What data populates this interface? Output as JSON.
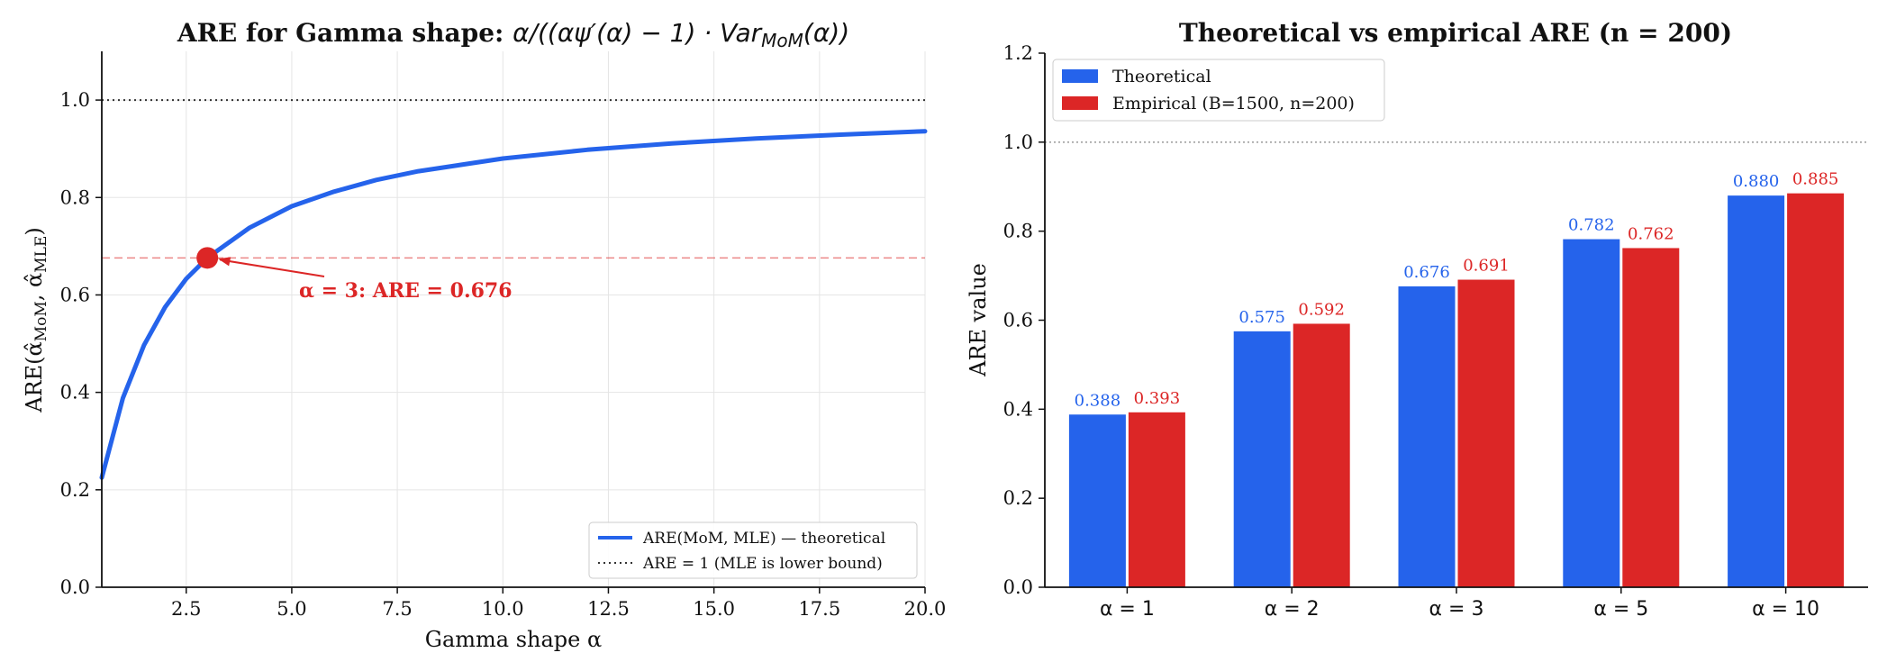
{
  "colors": {
    "blue": "#2563eb",
    "red": "#dc2626",
    "grid": "#e5e5e5",
    "ref": "#333333"
  },
  "chart_data": [
    {
      "type": "line",
      "title_prefix": "ARE for Gamma shape: ",
      "title_math": "α/((αψ′(α) − 1) · Var",
      "title_math_sub": "MoM",
      "title_math_tail": "(α))",
      "xlabel": "Gamma shape α",
      "ylabel": "ARE(α̂",
      "ylabel_sub1": "MoM",
      "ylabel_mid": ", α̂",
      "ylabel_sub2": "MLE",
      "ylabel_tail": ")",
      "xlim": [
        0.5,
        20
      ],
      "ylim": [
        0,
        1.1
      ],
      "xticks": [
        "2.5",
        "5.0",
        "7.5",
        "10.0",
        "12.5",
        "15.0",
        "17.5",
        "20.0"
      ],
      "yticks": [
        "0.0",
        "0.2",
        "0.4",
        "0.6",
        "0.8",
        "1.0"
      ],
      "grid": true,
      "series": [
        {
          "name": "ARE(MoM, MLE) — theoretical",
          "x": [
            0.5,
            1,
            1.5,
            2,
            2.5,
            3,
            4,
            5,
            6,
            7,
            8,
            10,
            12,
            14,
            16,
            18,
            20
          ],
          "y": [
            0.225,
            0.388,
            0.497,
            0.575,
            0.633,
            0.676,
            0.738,
            0.782,
            0.812,
            0.836,
            0.854,
            0.88,
            0.898,
            0.911,
            0.921,
            0.929,
            0.936
          ]
        }
      ],
      "reference_lines": [
        {
          "name": "ARE = 1 (MLE is lower bound)",
          "y": 1.0,
          "style": "dotted"
        },
        {
          "y": 0.676,
          "style": "dashed"
        }
      ],
      "highlight_point": {
        "x": 3,
        "y": 0.676
      },
      "annotation": "α = 3: ARE = 0.676",
      "legend_position": "lower-right"
    },
    {
      "type": "bar",
      "title": "Theoretical vs empirical ARE (n = 200)",
      "ylabel": "ARE value",
      "categories": [
        "α = 1",
        "α = 2",
        "α = 3",
        "α = 5",
        "α = 10"
      ],
      "ylim": [
        0,
        1.2
      ],
      "yticks": [
        "0.0",
        "0.2",
        "0.4",
        "0.6",
        "0.8",
        "1.0",
        "1.2"
      ],
      "series": [
        {
          "name": "Theoretical",
          "values": [
            0.388,
            0.575,
            0.676,
            0.782,
            0.88
          ],
          "labels": [
            "0.388",
            "0.575",
            "0.676",
            "0.782",
            "0.880"
          ]
        },
        {
          "name": "Empirical (B=1500, n=200)",
          "values": [
            0.393,
            0.592,
            0.691,
            0.762,
            0.885
          ],
          "labels": [
            "0.393",
            "0.592",
            "0.691",
            "0.762",
            "0.885"
          ]
        }
      ],
      "reference_lines": [
        {
          "y": 1.0,
          "style": "dotted"
        }
      ],
      "legend_position": "top-left"
    }
  ]
}
